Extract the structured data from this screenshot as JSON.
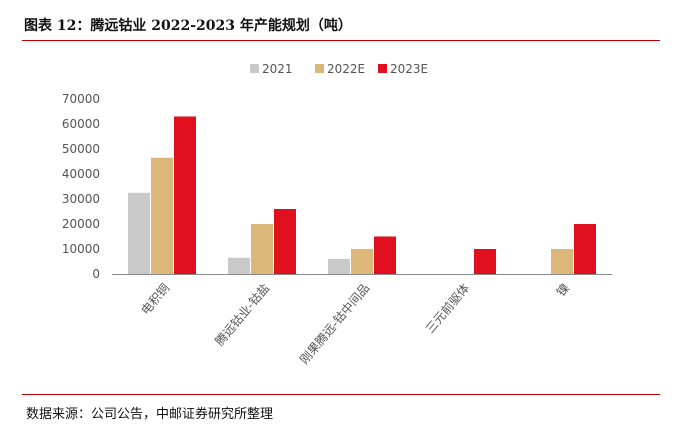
{
  "header": {
    "title": "图表 12：腾远钴业 2022-2023 年产能规划（吨）"
  },
  "footer": {
    "source": "数据来源：公司公告，中邮证券研究所整理"
  },
  "chart_data": {
    "type": "bar",
    "title": "图表 12：腾远钴业 2022-2023 年产能规划（吨）",
    "xlabel": "",
    "ylabel": "",
    "categories": [
      "电积铜",
      "腾远钴业-钴盐",
      "刚果腾远-钴中间品",
      "三元前驱体",
      "镍"
    ],
    "series": [
      {
        "name": "2021",
        "color": "#c9c9c9",
        "values": [
          32500,
          6500,
          6000,
          0,
          0
        ]
      },
      {
        "name": "2022E",
        "color": "#dbb77a",
        "values": [
          46500,
          20000,
          10000,
          0,
          10000
        ]
      },
      {
        "name": "2023E",
        "color": "#e0101e",
        "values": [
          63000,
          26000,
          15000,
          10000,
          20000
        ]
      }
    ],
    "ylim": [
      0,
      70000
    ],
    "yticks": [
      0,
      10000,
      20000,
      30000,
      40000,
      50000,
      60000,
      70000
    ],
    "legend_position": "top-center",
    "grid": false
  }
}
